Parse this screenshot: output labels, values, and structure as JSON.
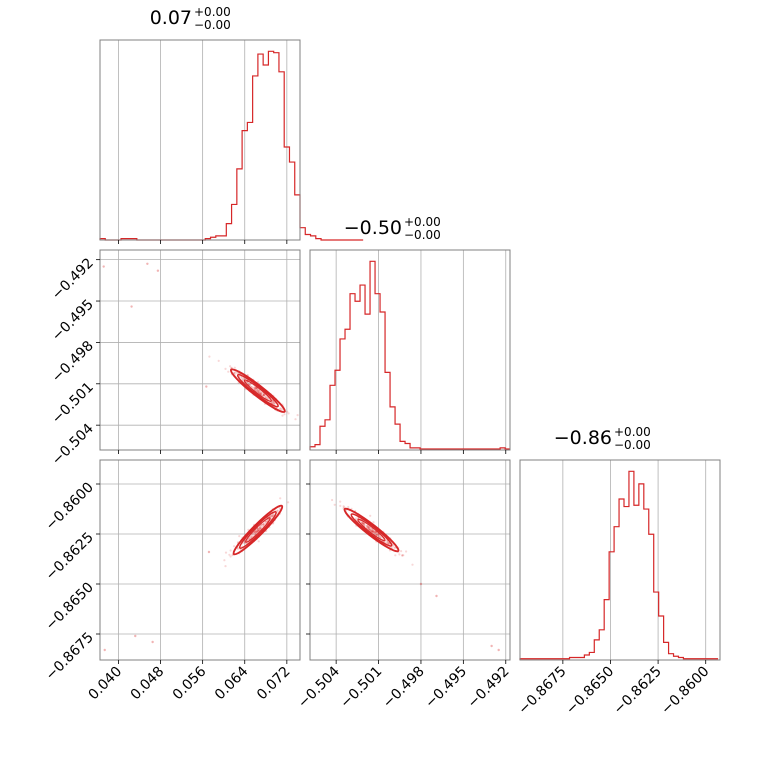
{
  "chart_data": {
    "type": "corner",
    "color": "#d62728",
    "panels": [
      {
        "kind": "histogram",
        "row": 0,
        "col": 0,
        "title": {
          "value": "0.07",
          "upper": "+0.00",
          "lower": "−0.00"
        },
        "xlim": [
          0.0365,
          0.0745
        ],
        "xticks": [
          0.04,
          0.048,
          0.056,
          0.064,
          0.072
        ],
        "xtick_labels": [
          "0.040",
          "0.048",
          "0.056",
          "0.064",
          "0.072"
        ],
        "show_xtick_labels": false,
        "bin_edges_start": 0.0365,
        "bin_width": 0.001,
        "counts": [
          1,
          0,
          0,
          0,
          1,
          1,
          1,
          0,
          0,
          0,
          0,
          0,
          0,
          0,
          0,
          0,
          0,
          0,
          0,
          0,
          1,
          2,
          3,
          3,
          12,
          26,
          52,
          80,
          86,
          120,
          136,
          128,
          138,
          137,
          123,
          68,
          57,
          33,
          9,
          4,
          3,
          1,
          0,
          0,
          0,
          0,
          0,
          0,
          0,
          0
        ]
      },
      {
        "kind": "histogram",
        "row": 1,
        "col": 1,
        "title": {
          "value": "−0.50",
          "upper": "+0.00",
          "lower": "−0.00"
        },
        "xlim": [
          -0.50585,
          -0.4917
        ],
        "xticks": [
          -0.504,
          -0.501,
          -0.498,
          -0.495,
          -0.492
        ],
        "xtick_labels": [
          "−0.504",
          "−0.501",
          "−0.498",
          "−0.495",
          "−0.492"
        ],
        "show_xtick_labels": false,
        "bin_edges_start": -0.50585,
        "bin_width": 0.000354,
        "counts": [
          3,
          5,
          22,
          28,
          60,
          74,
          103,
          112,
          145,
          138,
          153,
          126,
          175,
          145,
          128,
          72,
          40,
          24,
          8,
          6,
          2,
          2,
          1,
          1,
          1,
          1,
          1,
          1,
          1,
          1,
          1,
          1,
          1,
          1,
          1,
          1,
          1,
          1,
          2,
          1
        ]
      },
      {
        "kind": "histogram",
        "row": 2,
        "col": 2,
        "title": {
          "value": "−0.86",
          "upper": "+0.00",
          "lower": "−0.00"
        },
        "xlim": [
          -0.86975,
          -0.85925
        ],
        "xticks": [
          -0.8675,
          -0.865,
          -0.8625,
          -0.86
        ],
        "xtick_labels": [
          "−0.8675",
          "−0.8650",
          "−0.8625",
          "−0.8600"
        ],
        "show_xtick_labels": true,
        "bin_edges_start": -0.86975,
        "bin_width": 0.00026,
        "counts": [
          1,
          1,
          1,
          1,
          1,
          1,
          1,
          1,
          1,
          1,
          2,
          2,
          2,
          4,
          6,
          16,
          24,
          48,
          86,
          106,
          128,
          122,
          150,
          123,
          140,
          120,
          100,
          54,
          35,
          14,
          5,
          3,
          2,
          1,
          1,
          1,
          1,
          1,
          1,
          1
        ]
      },
      {
        "kind": "scatter2d",
        "row": 1,
        "col": 0,
        "xlim": [
          0.0365,
          0.0745
        ],
        "ylim": [
          -0.5058,
          -0.4913
        ],
        "xticks": [
          0.04,
          0.048,
          0.056,
          0.064,
          0.072
        ],
        "yticks": [
          -0.492,
          -0.495,
          -0.498,
          -0.501,
          -0.504
        ],
        "ytick_labels": [
          "−0.492",
          "−0.495",
          "−0.498",
          "−0.501",
          "−0.504"
        ],
        "correlation": "negative",
        "center": [
          0.0665,
          -0.5015
        ],
        "outliers": [
          [
            0.0372,
            -0.4925
          ],
          [
            0.0455,
            -0.4923
          ],
          [
            0.0475,
            -0.4928
          ],
          [
            0.0425,
            -0.4954
          ],
          [
            0.0567,
            -0.5012
          ]
        ]
      },
      {
        "kind": "scatter2d",
        "row": 2,
        "col": 0,
        "xlim": [
          0.0365,
          0.0745
        ],
        "ylim": [
          -0.8688,
          -0.8588
        ],
        "xticks": [
          0.04,
          0.048,
          0.056,
          0.064,
          0.072
        ],
        "xtick_labels": [
          "0.040",
          "0.048",
          "0.056",
          "0.064",
          "0.072"
        ],
        "yticks": [
          -0.86,
          -0.8625,
          -0.865,
          -0.8675
        ],
        "ytick_labels": [
          "−0.8600",
          "−0.8625",
          "−0.8650",
          "−0.8675"
        ],
        "correlation": "positive",
        "center": [
          0.0665,
          -0.8623
        ],
        "outliers": [
          [
            0.0374,
            -0.8683
          ],
          [
            0.0432,
            -0.8676
          ],
          [
            0.0465,
            -0.8679
          ],
          [
            0.0572,
            -0.8634
          ]
        ]
      },
      {
        "kind": "scatter2d",
        "row": 2,
        "col": 1,
        "xlim": [
          -0.50585,
          -0.4917
        ],
        "ylim": [
          -0.8688,
          -0.8588
        ],
        "xticks": [
          -0.504,
          -0.501,
          -0.498,
          -0.495,
          -0.492
        ],
        "xtick_labels": [
          "−0.504",
          "−0.501",
          "−0.498",
          "−0.495",
          "−0.492"
        ],
        "yticks": [
          -0.86,
          -0.8625,
          -0.865,
          -0.8675
        ],
        "correlation": "negative",
        "center": [
          -0.5015,
          -0.8623
        ],
        "outliers": [
          [
            -0.4925,
            -0.8683
          ],
          [
            -0.493,
            -0.8681
          ],
          [
            -0.4969,
            -0.8656
          ],
          [
            -0.498,
            -0.865
          ]
        ]
      }
    ]
  }
}
